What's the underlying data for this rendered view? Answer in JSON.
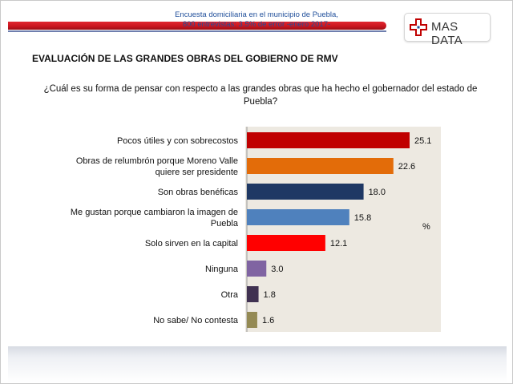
{
  "brand": {
    "name": "MAS DATA",
    "logo_icon": "red-cross-icon",
    "accent_red": "#c00000",
    "accent_blue": "#1f4e9a"
  },
  "title": "EVALUACIÓN DE LAS GRANDES OBRAS DEL GOBIERNO DE RMV",
  "question": "¿Cuál es su forma de pensar con respecto a las grandes obras que ha hecho el gobernador del estado de Puebla?",
  "footer": {
    "line1": "Encuesta domiciliaria en el municipio de Puebla,",
    "line2": "800 entrevistas: 3.5% de error -enero 2017-"
  },
  "chart_data": {
    "type": "bar",
    "orientation": "horizontal",
    "unit_label": "%",
    "xlim": [
      0,
      30
    ],
    "grid": false,
    "legend": "none",
    "plot_background": "#ede9e1",
    "categories": [
      [
        "Pocos útiles y con sobrecostos"
      ],
      [
        "Obras de relumbrón porque Moreno Valle",
        "quiere ser presidente"
      ],
      [
        "Son obras benéficas"
      ],
      [
        "Me gustan porque cambiaron la imagen de",
        "Puebla"
      ],
      [
        "Solo sirven en la capital"
      ],
      [
        "Ninguna"
      ],
      [
        "Otra"
      ],
      [
        "No sabe/ No contesta"
      ]
    ],
    "values": [
      25.1,
      22.6,
      18.0,
      15.8,
      12.1,
      3.0,
      1.8,
      1.6
    ],
    "value_labels": [
      "25.1",
      "22.6",
      "18.0",
      "15.8",
      "12.1",
      "3.0",
      "1.8",
      "1.6"
    ],
    "colors": [
      "#c00000",
      "#e36c09",
      "#1f3864",
      "#4f81bd",
      "#ff0000",
      "#8064a2",
      "#403151",
      "#948a54"
    ]
  }
}
